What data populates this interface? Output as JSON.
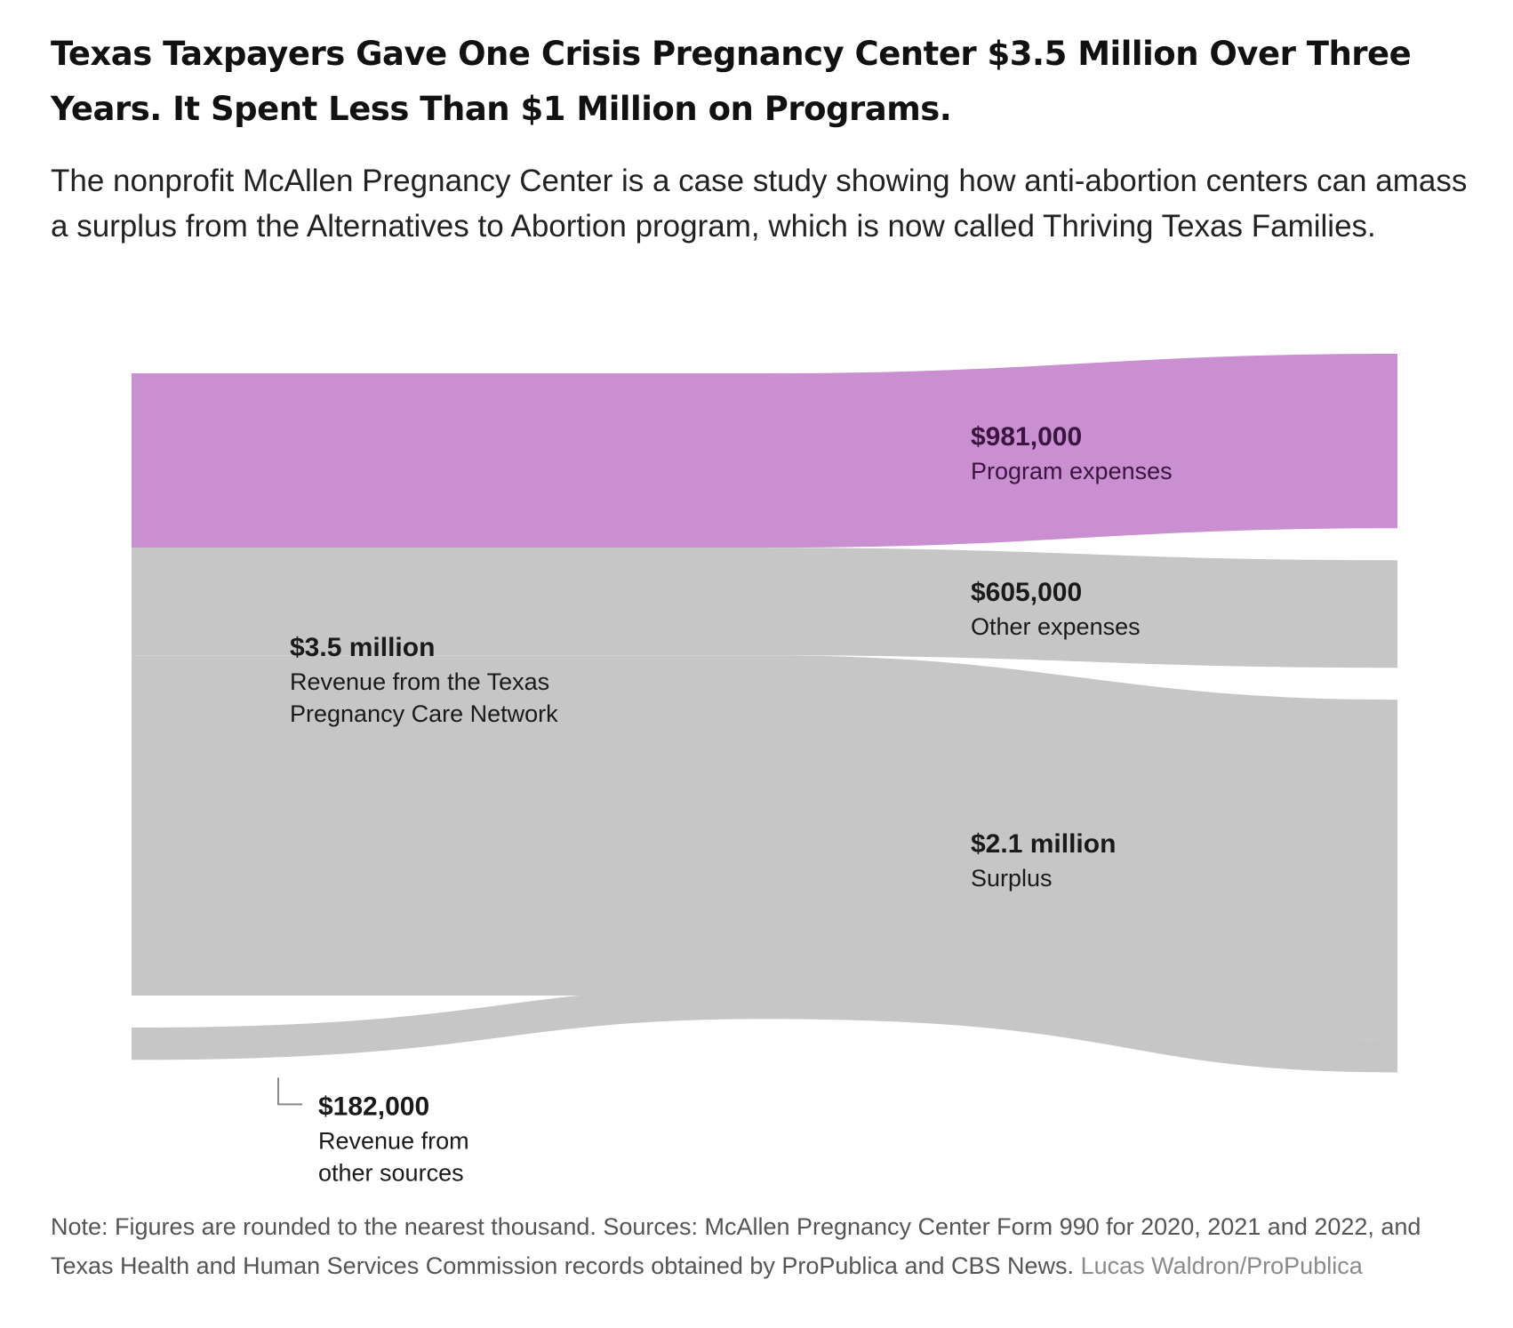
{
  "title": "Texas Taxpayers Gave One Crisis Pregnancy Center $3.5 Million Over Three Years. It Spent Less Than $1 Million on Programs.",
  "subtitle": "The nonprofit McAllen Pregnancy Center is a case study showing how anti-abortion centers can amass a surplus from the Alternatives to Abortion program, which is now called Thriving Texas Families.",
  "note": "Note: Figures are rounded to the nearest thousand. Sources: McAllen Pregnancy Center Form 990 for 2020, 2021 and 2022, and Texas Health and Human Services Commission records obtained by ProPublica and CBS News.",
  "credit": "Lucas Waldron/ProPublica",
  "colors": {
    "flow": "#c6c6c6",
    "program": "#c98fd1",
    "label_dark": "#1a1a1a",
    "label_purple": "#3b1440",
    "connector": "#888888"
  },
  "chart_data": {
    "type": "sankey",
    "units": "USD",
    "sources": [
      {
        "id": "texas",
        "value": 3500000,
        "value_label": "$3.5 million",
        "label": [
          "Revenue from the Texas",
          "Pregnancy Care Network"
        ]
      },
      {
        "id": "other",
        "value": 182000,
        "value_label": "$182,000",
        "label": [
          "Revenue from",
          "other sources"
        ]
      }
    ],
    "targets": [
      {
        "id": "program",
        "value": 981000,
        "value_label": "$981,000",
        "label": [
          "Program expenses"
        ],
        "highlight": true
      },
      {
        "id": "other_exp",
        "value": 605000,
        "value_label": "$605,000",
        "label": [
          "Other expenses"
        ],
        "highlight": false
      },
      {
        "id": "surplus",
        "value": 2100000,
        "value_label": "$2.1 million",
        "label": [
          "Surplus"
        ],
        "highlight": false
      }
    ],
    "links": [
      {
        "source": "texas",
        "target": "program",
        "value": 981000
      },
      {
        "source": "texas",
        "target": "other_exp",
        "value": 605000
      },
      {
        "source": "texas",
        "target": "surplus",
        "value": 1914000
      },
      {
        "source": "other",
        "target": "surplus",
        "value": 182000
      }
    ]
  }
}
